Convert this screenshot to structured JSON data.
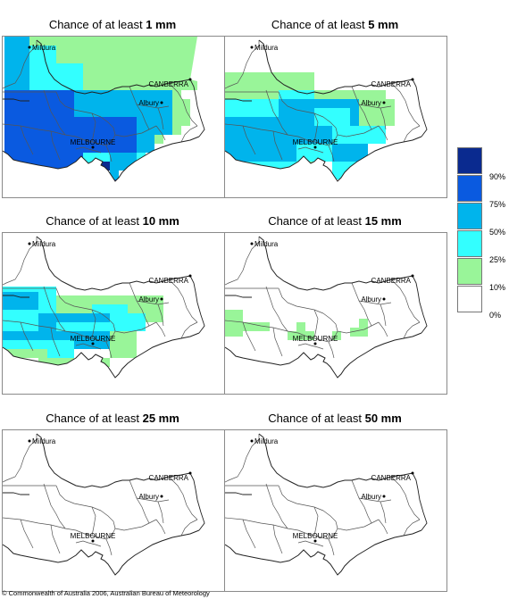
{
  "panels": [
    {
      "title_prefix": "Chance of at least ",
      "title_amount": "1 mm"
    },
    {
      "title_prefix": "Chance of at least ",
      "title_amount": "5 mm"
    },
    {
      "title_prefix": "Chance of at least ",
      "title_amount": "10 mm"
    },
    {
      "title_prefix": "Chance of at least ",
      "title_amount": "15 mm"
    },
    {
      "title_prefix": "Chance of at least ",
      "title_amount": "25 mm"
    },
    {
      "title_prefix": "Chance of at least ",
      "title_amount": "50 mm"
    }
  ],
  "places": {
    "mildura": "Mildura",
    "canberra": "CANBERRA",
    "albury": "Albury",
    "melbourne": "MELBOURNE"
  },
  "legend": {
    "labels": [
      "90%",
      "75%",
      "50%",
      "25%",
      "10%",
      "0%"
    ],
    "colors": [
      "#0a2a8f",
      "#0a5ae0",
      "#00b4ec",
      "#33ffff",
      "#99f599",
      "#ffffff"
    ]
  },
  "copyright": "© Commonwealth of Australia 2006, Australian Bureau of Meteorology"
}
